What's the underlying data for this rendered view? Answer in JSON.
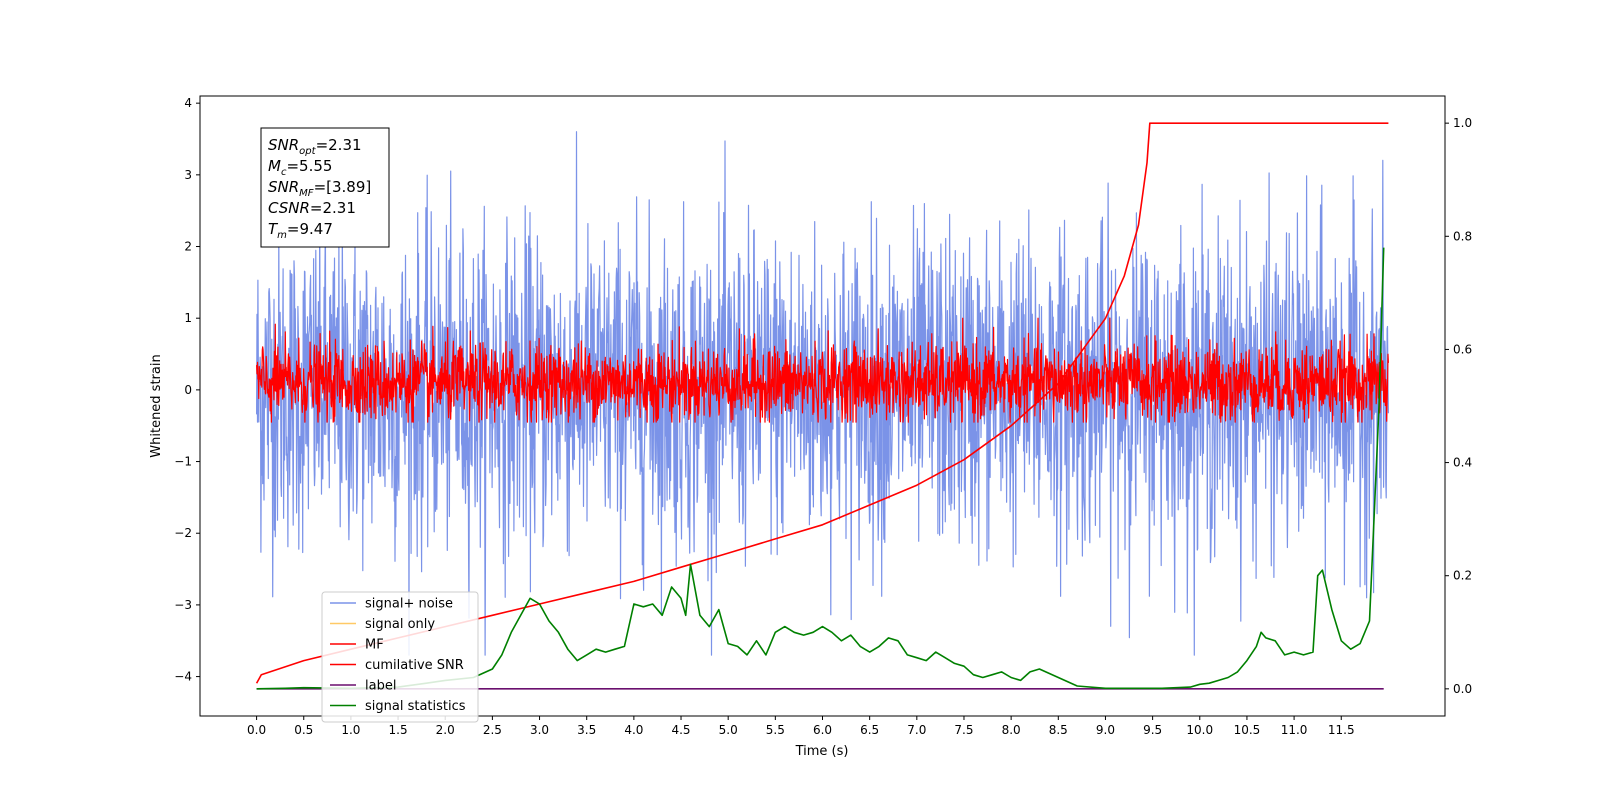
{
  "chart_data": {
    "type": "line",
    "xlabel": "Time (s)",
    "ylabel": "Whitened strain",
    "xlim": [
      -0.6,
      12.6
    ],
    "ylim": [
      -4.55,
      4.1
    ],
    "ylim_right": [
      -0.048,
      1.048
    ],
    "x_ticks": [
      "0.0",
      "0.5",
      "1.0",
      "1.5",
      "2.0",
      "2.5",
      "3.0",
      "3.5",
      "4.0",
      "4.5",
      "5.0",
      "5.5",
      "6.0",
      "6.5",
      "7.0",
      "7.5",
      "8.0",
      "8.5",
      "9.0",
      "9.5",
      "10.0",
      "10.5",
      "11.0",
      "11.5"
    ],
    "y_ticks_left": [
      "−4",
      "−3",
      "−2",
      "−1",
      "0",
      "1",
      "2",
      "3",
      "4"
    ],
    "y_ticks_right": [
      "0.0",
      "0.2",
      "0.4",
      "0.6",
      "0.8",
      "1.0"
    ],
    "grid": false,
    "legend_position": "lower-left",
    "annotation": {
      "lines": [
        {
          "base": "SNR",
          "sub": "opt",
          "value": "=2.31"
        },
        {
          "base": "M",
          "sub": "c",
          "value": "=5.55"
        },
        {
          "base": "SNR",
          "sub": "MF",
          "value": "=[3.89]"
        },
        {
          "base": "CSNR",
          "sub": "",
          "value": "=2.31"
        },
        {
          "base": "T",
          "sub": "m",
          "value": "=9.47"
        }
      ]
    },
    "series": [
      {
        "name": "signal+ noise",
        "color": "#7b93e8",
        "axis": "left",
        "kind": "noise",
        "x_range": [
          0.0,
          12.0
        ],
        "band": [
          -2.0,
          2.0
        ],
        "extremes": [
          -3.7,
          3.7
        ]
      },
      {
        "name": "signal only",
        "color": "#ffc966",
        "axis": "left",
        "kind": "empty"
      },
      {
        "name": "MF",
        "color": "#ff0000",
        "axis": "left",
        "kind": "noise",
        "x_range": [
          0.0,
          12.0
        ],
        "band": [
          -0.4,
          0.6
        ],
        "extremes": [
          -0.45,
          1.0
        ]
      },
      {
        "name": "cumilative SNR",
        "color": "#ff0000",
        "axis": "right",
        "kind": "line",
        "x": [
          0.0,
          0.05,
          0.5,
          1.0,
          1.5,
          2.0,
          2.5,
          3.0,
          3.5,
          4.0,
          4.5,
          5.0,
          5.5,
          6.0,
          6.5,
          7.0,
          7.5,
          8.0,
          8.5,
          9.0,
          9.2,
          9.35,
          9.44,
          9.47,
          12.0
        ],
        "y": [
          0.01,
          0.025,
          0.05,
          0.07,
          0.09,
          0.11,
          0.13,
          0.15,
          0.17,
          0.19,
          0.215,
          0.24,
          0.265,
          0.29,
          0.325,
          0.36,
          0.405,
          0.465,
          0.54,
          0.655,
          0.73,
          0.82,
          0.93,
          1.0,
          1.0
        ]
      },
      {
        "name": "label",
        "color": "#6a0f6e",
        "axis": "right",
        "kind": "line",
        "x": [
          0.0,
          11.95
        ],
        "y": [
          0.0,
          0.0
        ]
      },
      {
        "name": "signal statistics",
        "color": "#008000",
        "axis": "right",
        "kind": "line",
        "x": [
          0.0,
          0.3,
          0.5,
          1.0,
          1.5,
          1.8,
          2.0,
          2.3,
          2.5,
          2.6,
          2.7,
          2.8,
          2.9,
          3.0,
          3.1,
          3.2,
          3.3,
          3.4,
          3.5,
          3.6,
          3.7,
          3.8,
          3.9,
          4.0,
          4.1,
          4.2,
          4.3,
          4.4,
          4.5,
          4.55,
          4.6,
          4.7,
          4.8,
          4.9,
          5.0,
          5.1,
          5.2,
          5.3,
          5.4,
          5.5,
          5.6,
          5.7,
          5.8,
          5.9,
          6.0,
          6.1,
          6.2,
          6.3,
          6.4,
          6.5,
          6.6,
          6.7,
          6.8,
          6.9,
          7.0,
          7.1,
          7.2,
          7.3,
          7.4,
          7.5,
          7.6,
          7.7,
          7.8,
          7.9,
          8.0,
          8.1,
          8.2,
          8.3,
          8.5,
          8.7,
          9.0,
          9.3,
          9.6,
          9.9,
          10.0,
          10.1,
          10.2,
          10.3,
          10.4,
          10.5,
          10.6,
          10.65,
          10.7,
          10.8,
          10.9,
          11.0,
          11.1,
          11.2,
          11.25,
          11.3,
          11.4,
          11.5,
          11.6,
          11.7,
          11.8,
          11.9,
          11.95
        ],
        "y": [
          0.0,
          0.001,
          0.002,
          0.001,
          0.003,
          0.01,
          0.015,
          0.02,
          0.035,
          0.06,
          0.1,
          0.13,
          0.16,
          0.15,
          0.12,
          0.1,
          0.07,
          0.05,
          0.06,
          0.07,
          0.065,
          0.07,
          0.075,
          0.15,
          0.145,
          0.15,
          0.13,
          0.18,
          0.16,
          0.13,
          0.22,
          0.13,
          0.11,
          0.14,
          0.08,
          0.075,
          0.06,
          0.085,
          0.06,
          0.1,
          0.11,
          0.1,
          0.095,
          0.1,
          0.11,
          0.1,
          0.085,
          0.095,
          0.075,
          0.065,
          0.075,
          0.09,
          0.085,
          0.06,
          0.055,
          0.05,
          0.065,
          0.055,
          0.045,
          0.04,
          0.025,
          0.02,
          0.025,
          0.03,
          0.02,
          0.015,
          0.03,
          0.035,
          0.02,
          0.005,
          0.001,
          0.001,
          0.001,
          0.003,
          0.008,
          0.01,
          0.015,
          0.02,
          0.03,
          0.05,
          0.075,
          0.1,
          0.09,
          0.085,
          0.06,
          0.065,
          0.06,
          0.065,
          0.2,
          0.21,
          0.14,
          0.085,
          0.07,
          0.08,
          0.12,
          0.5,
          0.78
        ]
      }
    ]
  }
}
